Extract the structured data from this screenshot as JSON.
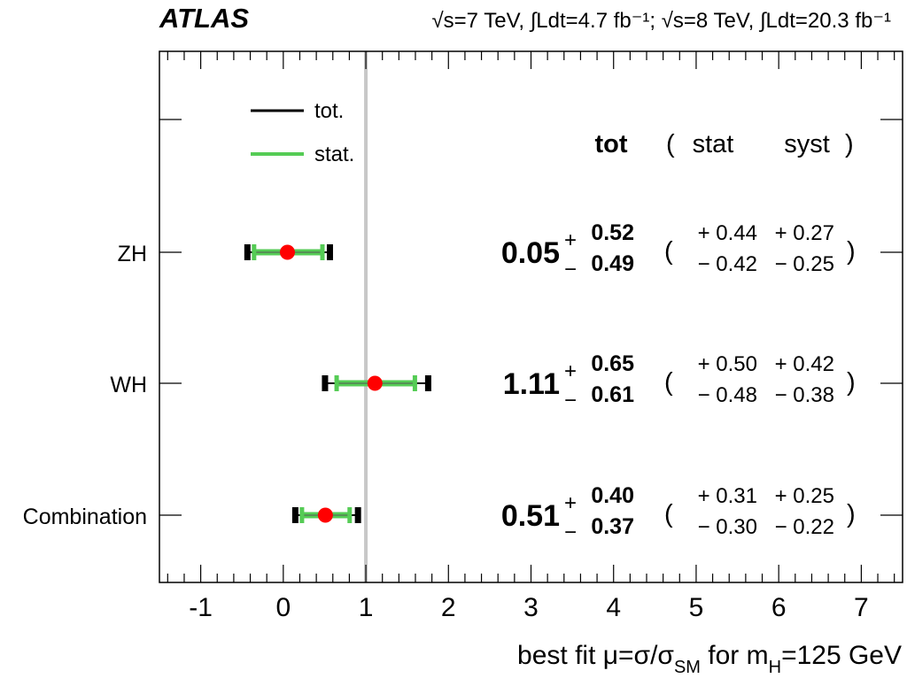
{
  "header": {
    "experiment": "ATLAS",
    "luminosity_text": "√s=7 TeV, ∫Ldt=4.7 fb⁻¹; √s=8 TeV, ∫Ldt=20.3 fb⁻¹"
  },
  "chart_data": {
    "type": "forest",
    "title": "",
    "xlabel": "best fit μ=σ/σ_SM for m_H=125 GeV",
    "xlabel_parts": {
      "pre": "best fit μ=σ/σ",
      "sub1": "SM",
      "mid": " for m",
      "sub2": "H",
      "post": "=125 GeV"
    },
    "xlim": [
      -1.5,
      7.5
    ],
    "xticks": [
      -1,
      0,
      1,
      2,
      3,
      4,
      5,
      6,
      7
    ],
    "xtick_labels": [
      "-1",
      "0",
      "1",
      "2",
      "3",
      "4",
      "5",
      "6",
      "7"
    ],
    "minor_tick_step": 0.2,
    "reference_line": 1,
    "reference_line_color": "#c8c8c8",
    "grid": false,
    "legend": {
      "placement": "top-left",
      "entries": [
        {
          "label": "tot.",
          "color": "#000000"
        },
        {
          "label": "stat.",
          "color": "#55cc55"
        }
      ]
    },
    "column_headers": {
      "tot": "tot",
      "open": "(",
      "stat": "stat",
      "syst": "syst",
      "close": ")"
    },
    "marker_color": "#ff0000",
    "categories": [
      "ZH",
      "WH",
      "Combination"
    ],
    "rows": [
      {
        "label": "ZH",
        "value": 0.05,
        "value_text": "0.05",
        "tot_up": 0.52,
        "tot_down": 0.49,
        "tot_up_text": "0.52",
        "tot_down_text": "0.49",
        "stat_up": 0.44,
        "stat_down": 0.42,
        "stat_up_text": "+ 0.44",
        "stat_down_text": "− 0.42",
        "syst_up": 0.27,
        "syst_down": 0.25,
        "syst_up_text": "+ 0.27",
        "syst_down_text": "− 0.25"
      },
      {
        "label": "WH",
        "value": 1.11,
        "value_text": "1.11",
        "tot_up": 0.65,
        "tot_down": 0.61,
        "tot_up_text": "0.65",
        "tot_down_text": "0.61",
        "stat_up": 0.5,
        "stat_down": 0.48,
        "stat_up_text": "+ 0.50",
        "stat_down_text": "− 0.48",
        "syst_up": 0.42,
        "syst_down": 0.38,
        "syst_up_text": "+ 0.42",
        "syst_down_text": "− 0.38"
      },
      {
        "label": "Combination",
        "value": 0.51,
        "value_text": "0.51",
        "tot_up": 0.4,
        "tot_down": 0.37,
        "tot_up_text": "0.40",
        "tot_down_text": "0.37",
        "stat_up": 0.31,
        "stat_down": 0.3,
        "stat_up_text": "+ 0.31",
        "stat_down_text": "− 0.30",
        "syst_up": 0.25,
        "syst_down": 0.22,
        "syst_up_text": "+ 0.25",
        "syst_down_text": "− 0.22"
      }
    ]
  }
}
